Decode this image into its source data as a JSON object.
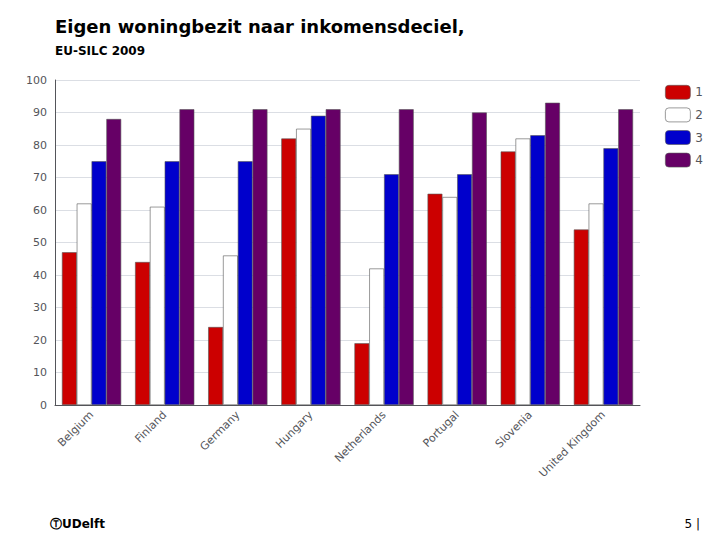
{
  "chart_data": {
    "type": "bar",
    "title": "Eigen woningbezit naar inkomensdeciel,",
    "subtitle": "EU-SILC 2009",
    "categories": [
      "Belgium",
      "Finland",
      "Germany",
      "Hungary",
      "Netherlands",
      "Portugal",
      "Slovenia",
      "United Kingdom"
    ],
    "series": [
      {
        "name": "1",
        "color": "#CC0000",
        "values": [
          47,
          44,
          24,
          82,
          19,
          65,
          78,
          54
        ]
      },
      {
        "name": "2",
        "color": "#FFFFFF",
        "values": [
          62,
          61,
          46,
          85,
          42,
          64,
          82,
          62
        ]
      },
      {
        "name": "3",
        "color": "#0000CC",
        "values": [
          75,
          75,
          75,
          89,
          71,
          71,
          83,
          79
        ]
      },
      {
        "name": "4",
        "color": "#660066",
        "values": [
          88,
          91,
          91,
          91,
          91,
          90,
          93,
          91
        ]
      }
    ],
    "ylim": [
      0,
      100
    ],
    "yticks": [
      0,
      10,
      20,
      30,
      40,
      50,
      60,
      70,
      80,
      90,
      100
    ],
    "grid": true,
    "legend": "upper right",
    "annotations": [
      "ⓉUDelft",
      "5 |"
    ]
  }
}
